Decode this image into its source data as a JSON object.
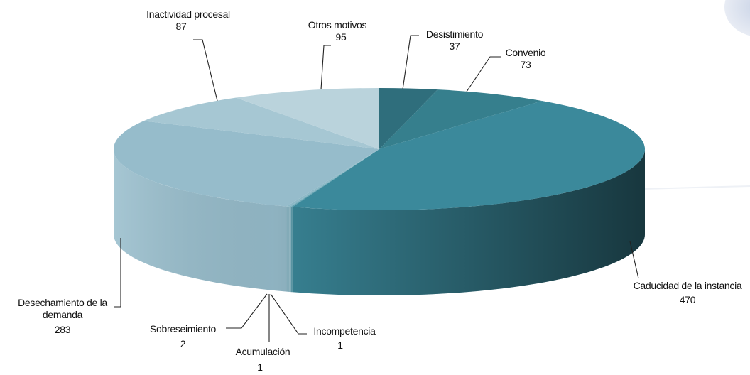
{
  "chart_data": {
    "type": "pie3d",
    "categories": [
      "Desistimiento",
      "Convenio",
      "Caducidad de la instancia",
      "Incompetencia",
      "Acumulación",
      "Sobreseimiento",
      "Desechamiento de la demanda",
      "Inactividad procesal",
      "Otros motivos"
    ],
    "values": [
      37,
      73,
      470,
      1,
      1,
      2,
      283,
      87,
      95
    ],
    "colors": [
      "#2f6e7c",
      "#367f8d",
      "#3b899b",
      "#5f9fae",
      "#7fb2c0",
      "#8db8c6",
      "#96bccb",
      "#a6c7d3",
      "#bad3dc"
    ]
  }
}
